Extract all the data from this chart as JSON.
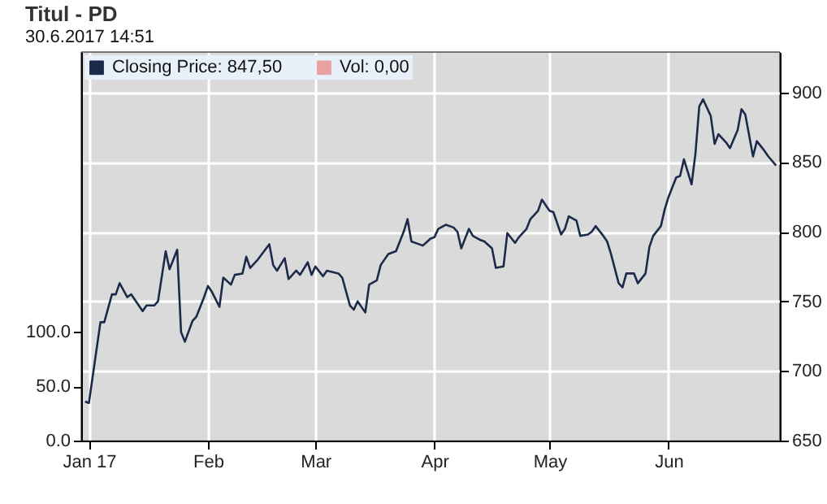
{
  "chart_data": {
    "type": "line",
    "title": "Titul - PD",
    "subtitle": "30.6.2017 14:51",
    "x": [
      "2016-12-31",
      "2017-01-01",
      "2017-01-04",
      "2017-01-05",
      "2017-01-07",
      "2017-01-08",
      "2017-01-09",
      "2017-01-11",
      "2017-01-12",
      "2017-01-15",
      "2017-01-16",
      "2017-01-18",
      "2017-01-19",
      "2017-01-21",
      "2017-01-22",
      "2017-01-24",
      "2017-01-25",
      "2017-01-26",
      "2017-01-28",
      "2017-01-29",
      "2017-01-31",
      "2017-02-01",
      "2017-02-02",
      "2017-02-04",
      "2017-02-05",
      "2017-02-07",
      "2017-02-08",
      "2017-02-10",
      "2017-02-11",
      "2017-02-12",
      "2017-02-14",
      "2017-02-17",
      "2017-02-18",
      "2017-02-19",
      "2017-02-21",
      "2017-02-22",
      "2017-02-24",
      "2017-02-25",
      "2017-02-27",
      "2017-02-28",
      "2017-03-01",
      "2017-03-03",
      "2017-03-04",
      "2017-03-07",
      "2017-03-08",
      "2017-03-10",
      "2017-03-11",
      "2017-03-12",
      "2017-03-14",
      "2017-03-15",
      "2017-03-17",
      "2017-03-18",
      "2017-03-20",
      "2017-03-22",
      "2017-03-24",
      "2017-03-25",
      "2017-03-26",
      "2017-03-29",
      "2017-03-31",
      "2017-04-01",
      "2017-04-02",
      "2017-04-04",
      "2017-04-06",
      "2017-04-07",
      "2017-04-08",
      "2017-04-10",
      "2017-04-11",
      "2017-04-13",
      "2017-04-14",
      "2017-04-16",
      "2017-04-17",
      "2017-04-19",
      "2017-04-20",
      "2017-04-22",
      "2017-04-23",
      "2017-04-25",
      "2017-04-26",
      "2017-04-28",
      "2017-04-29",
      "2017-05-01",
      "2017-05-02",
      "2017-05-04",
      "2017-05-05",
      "2017-05-06",
      "2017-05-08",
      "2017-05-09",
      "2017-05-11",
      "2017-05-12",
      "2017-05-13",
      "2017-05-15",
      "2017-05-16",
      "2017-05-17",
      "2017-05-19",
      "2017-05-20",
      "2017-05-21",
      "2017-05-23",
      "2017-05-24",
      "2017-05-26",
      "2017-05-27",
      "2017-05-28",
      "2017-05-30",
      "2017-05-31",
      "2017-06-01",
      "2017-06-03",
      "2017-06-04",
      "2017-06-05",
      "2017-06-07",
      "2017-06-08",
      "2017-06-09",
      "2017-06-10",
      "2017-06-12",
      "2017-06-13",
      "2017-06-14",
      "2017-06-16",
      "2017-06-17",
      "2017-06-19",
      "2017-06-20",
      "2017-06-21",
      "2017-06-23",
      "2017-06-24",
      "2017-06-26",
      "2017-06-27",
      "2017-06-29"
    ],
    "series": [
      {
        "name": "Closing Price: 847,50",
        "color": "#1c2a4a",
        "axis": "y2",
        "values": [
          678,
          677,
          735,
          735,
          755,
          755,
          763,
          753,
          755,
          743,
          747,
          747,
          750,
          786,
          773,
          787,
          728,
          721,
          736,
          739,
          753,
          761,
          757,
          746,
          767,
          762,
          769,
          770,
          782,
          774,
          780,
          791,
          776,
          772,
          781,
          766,
          772,
          769,
          778,
          769,
          775,
          768,
          772,
          770,
          767,
          747,
          744,
          750,
          742,
          762,
          765,
          776,
          784,
          786,
          800,
          809,
          793,
          790,
          795,
          796,
          802,
          805,
          803,
          800,
          788,
          802,
          797,
          794,
          793,
          788,
          774,
          775,
          799,
          792,
          796,
          802,
          809,
          815,
          823,
          815,
          814,
          798,
          802,
          811,
          808,
          797,
          798,
          800,
          804,
          797,
          793,
          784,
          763,
          760,
          770,
          770,
          763,
          770,
          789,
          797,
          804,
          816,
          825,
          839,
          840,
          852,
          834,
          856,
          890,
          895,
          883,
          863,
          870,
          864,
          860,
          873,
          888,
          884,
          854,
          865,
          858,
          854,
          847.5
        ]
      },
      {
        "name": "Vol: 0,00",
        "color": "#e8a0a0",
        "type": "bar",
        "axis": "y",
        "values": [
          0,
          0,
          0,
          0,
          0,
          0,
          0,
          0,
          0,
          0,
          0,
          0,
          0,
          0,
          0,
          0,
          0,
          0,
          0,
          0,
          0,
          0,
          0,
          0,
          0,
          0,
          0,
          0,
          0,
          0,
          0,
          0,
          0,
          0,
          0,
          0,
          0,
          0,
          0,
          0,
          0,
          0,
          0,
          0,
          0,
          0,
          0,
          0,
          0,
          0,
          0,
          0,
          0,
          0,
          0,
          0,
          0,
          0,
          0,
          0,
          0,
          0,
          0,
          0,
          0,
          0,
          0,
          0,
          0,
          0,
          0,
          0,
          0,
          0,
          0,
          0,
          0,
          0,
          0,
          0,
          0,
          0,
          0,
          0,
          0,
          0,
          0,
          0,
          0,
          0,
          0,
          0,
          0,
          0,
          0,
          0,
          0,
          0,
          0,
          0,
          0,
          0,
          0,
          0,
          0,
          0,
          0,
          0,
          0,
          0,
          0,
          0,
          0,
          0,
          0,
          0,
          0,
          0,
          0,
          0,
          0,
          0,
          0
        ]
      }
    ],
    "xlim": [
      "2016-12-30",
      "2017-06-30"
    ],
    "xticks": [
      {
        "value": "2017-01-01",
        "label": "Jan 17"
      },
      {
        "value": "2017-02-01",
        "label": "Feb"
      },
      {
        "value": "2017-03-01",
        "label": "Mar"
      },
      {
        "value": "2017-04-01",
        "label": "Apr"
      },
      {
        "value": "2017-05-01",
        "label": "May"
      },
      {
        "value": "2017-06-01",
        "label": "Jun"
      }
    ],
    "ylim": [
      0,
      357
    ],
    "yticks": [
      {
        "value": 0,
        "label": "0.0"
      },
      {
        "value": 50,
        "label": "50.0"
      },
      {
        "value": 100,
        "label": "100.0"
      }
    ],
    "y2lim": [
      650,
      929
    ],
    "y2ticks": [
      650,
      700,
      750,
      800,
      850,
      900
    ],
    "grid": true,
    "legend": "top left",
    "line_style": "solid"
  }
}
